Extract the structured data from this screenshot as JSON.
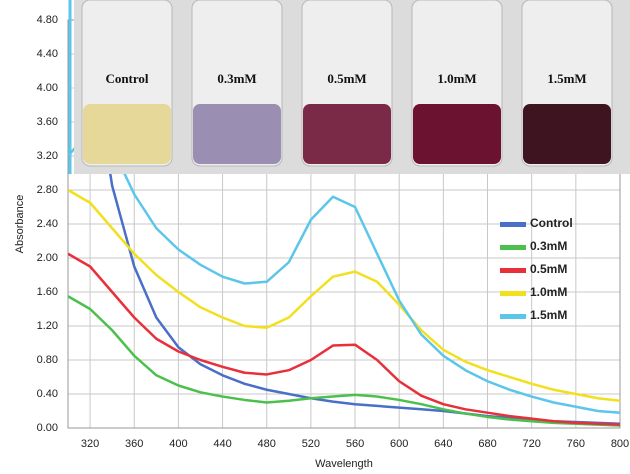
{
  "chart_data": {
    "type": "line",
    "x_label": "Wavelength",
    "y_label": "Absorbance",
    "x": [
      300,
      320,
      340,
      360,
      380,
      400,
      420,
      440,
      460,
      480,
      500,
      520,
      540,
      560,
      580,
      600,
      620,
      640,
      660,
      680,
      700,
      720,
      740,
      760,
      780,
      800
    ],
    "series": [
      {
        "name": "Control",
        "color": "#4a6fc8",
        "values": [
          null,
          4.5,
          2.85,
          1.9,
          1.3,
          0.95,
          0.75,
          0.62,
          0.52,
          0.45,
          0.4,
          0.35,
          0.31,
          0.28,
          0.26,
          0.24,
          0.22,
          0.2,
          0.17,
          0.14,
          0.12,
          0.1,
          0.08,
          0.07,
          0.06,
          0.05
        ]
      },
      {
        "name": "0.3mM",
        "color": "#4cc04c",
        "values": [
          1.55,
          1.4,
          1.15,
          0.85,
          0.62,
          0.5,
          0.42,
          0.37,
          0.33,
          0.3,
          0.32,
          0.35,
          0.37,
          0.39,
          0.37,
          0.33,
          0.28,
          0.22,
          0.17,
          0.13,
          0.1,
          0.08,
          0.06,
          0.05,
          0.04,
          0.03
        ]
      },
      {
        "name": "0.5mM",
        "color": "#e8303a",
        "values": [
          2.05,
          1.9,
          1.6,
          1.3,
          1.05,
          0.9,
          0.8,
          0.72,
          0.65,
          0.63,
          0.68,
          0.8,
          0.97,
          0.98,
          0.8,
          0.55,
          0.38,
          0.28,
          0.22,
          0.18,
          0.14,
          0.11,
          0.08,
          0.06,
          0.05,
          0.04
        ]
      },
      {
        "name": "1.0mM",
        "color": "#f2e01e",
        "values": [
          2.8,
          2.65,
          2.35,
          2.05,
          1.8,
          1.6,
          1.42,
          1.3,
          1.2,
          1.18,
          1.3,
          1.55,
          1.78,
          1.84,
          1.72,
          1.45,
          1.15,
          0.92,
          0.78,
          0.68,
          0.6,
          0.52,
          0.45,
          0.4,
          0.35,
          0.32
        ]
      },
      {
        "name": "1.5mM",
        "color": "#5bc6ea",
        "values": [
          3.2,
          3.5,
          3.3,
          2.75,
          2.35,
          2.1,
          1.92,
          1.78,
          1.7,
          1.72,
          1.95,
          2.45,
          2.72,
          2.6,
          2.05,
          1.5,
          1.1,
          0.85,
          0.68,
          0.55,
          0.45,
          0.37,
          0.3,
          0.25,
          0.2,
          0.18
        ]
      }
    ],
    "xlim": [
      300,
      800
    ],
    "xticks": [
      320,
      360,
      400,
      440,
      480,
      520,
      560,
      600,
      640,
      680,
      720,
      760,
      800
    ],
    "ylim": [
      0,
      4.8
    ],
    "yticks": [
      {
        "value": 0,
        "label": "0.00"
      },
      {
        "value": 0.4,
        "label": "0.40"
      },
      {
        "value": 0.8,
        "label": "0.80"
      },
      {
        "value": 1.2,
        "label": "1.20"
      },
      {
        "value": 1.6,
        "label": "1.60"
      },
      {
        "value": 2.0,
        "label": "2.00"
      },
      {
        "value": 2.4,
        "label": "2.40"
      },
      {
        "value": 2.8,
        "label": "2.80"
      },
      {
        "value": 3.2,
        "label": "3.20"
      },
      {
        "value": 3.6,
        "label": "3.60"
      },
      {
        "value": 4.0,
        "label": "4.00"
      },
      {
        "value": 4.4,
        "label": "4.40"
      },
      {
        "value": 4.8,
        "label": "4.80"
      }
    ],
    "grid": true,
    "legend": "right",
    "photo_labels": [
      "Control",
      "0.3mM",
      "0.5mM",
      "1.0mM",
      "1.5mM"
    ]
  }
}
